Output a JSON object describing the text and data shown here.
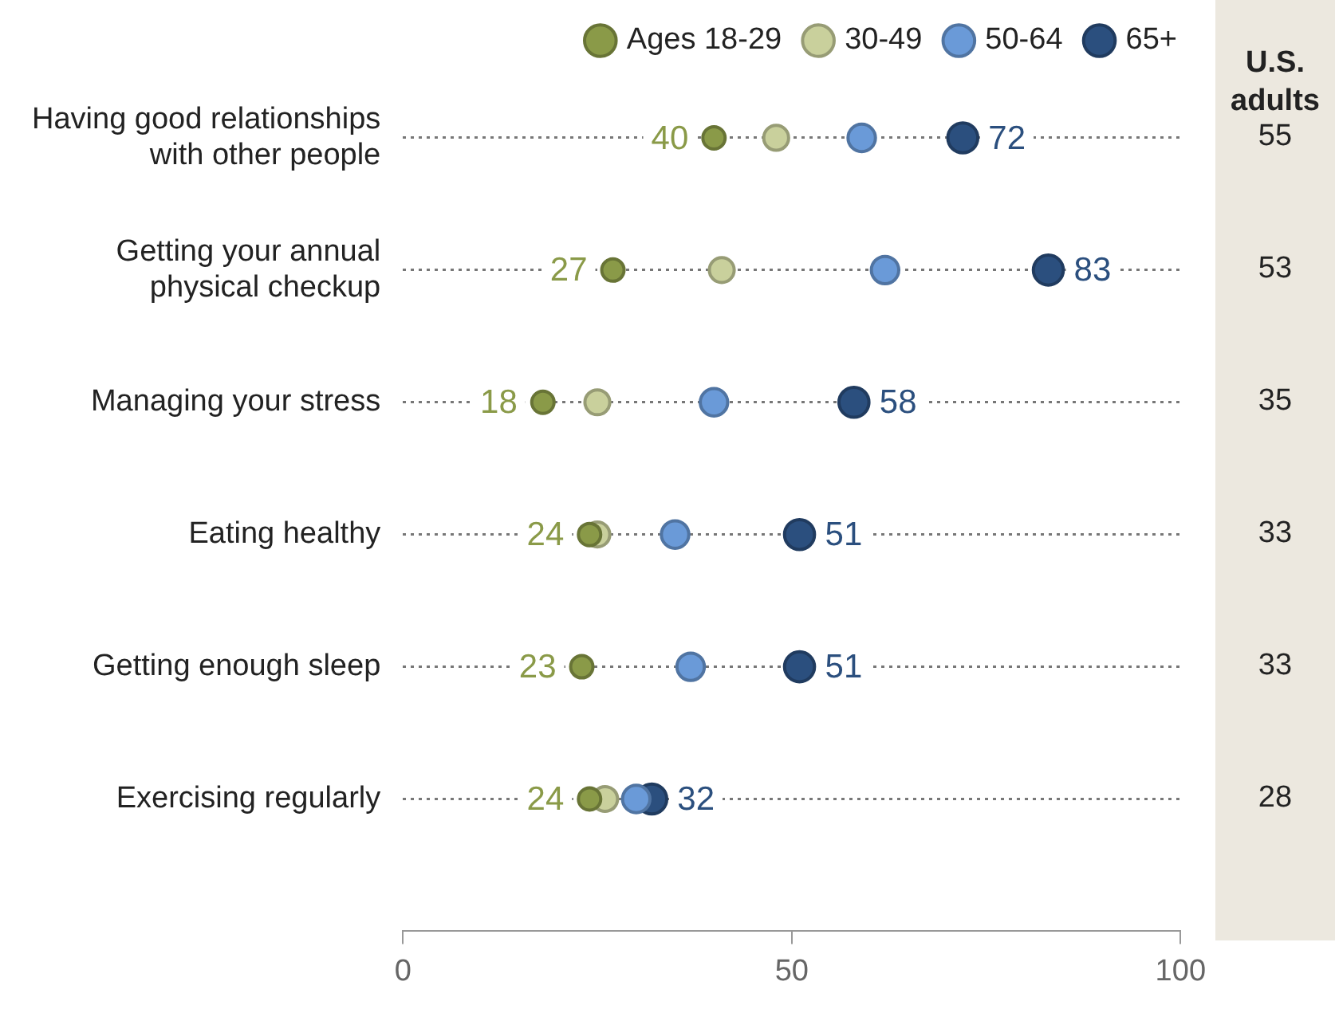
{
  "chart_data": [
    {
      "type": "scatter",
      "orientation": "horizontal",
      "categories": [
        "Having good relationships with other people",
        "Getting your annual physical checkup",
        "Managing your stress",
        "Eating healthy",
        "Getting enough sleep",
        "Exercising regularly"
      ],
      "series": [
        {
          "name": "Ages 18-29",
          "color": "#8a9a48",
          "values": [
            40,
            27,
            18,
            24,
            23,
            24
          ],
          "value_labels": [
            "40",
            "27",
            "18",
            "24",
            "23",
            "24"
          ]
        },
        {
          "name": "30-49",
          "color": "#c9d09c",
          "values": [
            48,
            41,
            25,
            25,
            null,
            26
          ]
        },
        {
          "name": "50-64",
          "color": "#6a9ad8",
          "values": [
            59,
            62,
            40,
            35,
            37,
            30
          ]
        },
        {
          "name": "65+",
          "color": "#2b4f7e",
          "values": [
            72,
            83,
            58,
            51,
            51,
            32
          ],
          "value_labels": [
            "72",
            "83",
            "58",
            "51",
            "51",
            "32"
          ]
        }
      ],
      "xlim": [
        0,
        100
      ],
      "xticks": [
        0,
        50,
        100
      ],
      "grid": "y",
      "legend": "top",
      "marker": "circle"
    },
    {
      "type": "other",
      "title": "U.S. adults",
      "values": [
        55,
        53,
        35,
        33,
        33,
        28
      ],
      "data_labels": true
    }
  ]
}
